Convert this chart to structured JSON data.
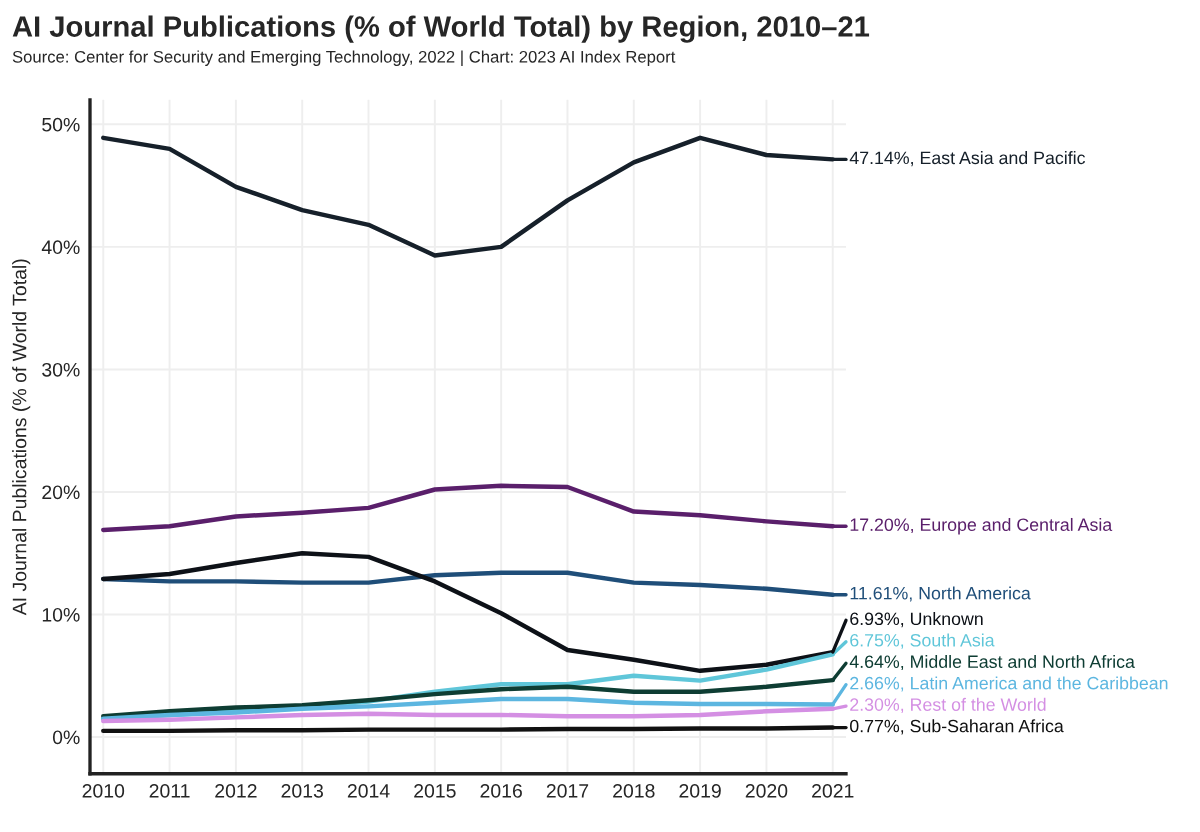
{
  "chart_data": {
    "type": "line",
    "title": "AI Journal Publications (% of World Total) by Region, 2010–21",
    "annotations": [
      "Source: Center for Security and Emerging Technology, 2022 | Chart: 2023 AI Index Report"
    ],
    "ylabel": "AI Journal Publications (% of World Total)",
    "categories": [
      "2010",
      "2011",
      "2012",
      "2013",
      "2014",
      "2015",
      "2016",
      "2017",
      "2018",
      "2019",
      "2020",
      "2021"
    ],
    "series": [
      {
        "name": "East Asia and Pacific",
        "color": "#16202a",
        "values": [
          48.9,
          48.0,
          44.9,
          43.0,
          41.8,
          39.3,
          40.0,
          43.8,
          46.9,
          48.9,
          47.5,
          47.14
        ],
        "value_labels": [
          null,
          null,
          null,
          null,
          null,
          null,
          null,
          null,
          null,
          null,
          null,
          "47.14%,"
        ]
      },
      {
        "name": "Europe and Central Asia",
        "color": "#5a1f6b",
        "values": [
          16.9,
          17.2,
          18.0,
          18.3,
          18.7,
          20.2,
          20.5,
          20.4,
          18.4,
          18.1,
          17.6,
          17.2
        ],
        "value_labels": [
          null,
          null,
          null,
          null,
          null,
          null,
          null,
          null,
          null,
          null,
          null,
          "17.20%,"
        ]
      },
      {
        "name": "North America",
        "color": "#1f4e79",
        "values": [
          12.9,
          12.7,
          12.7,
          12.6,
          12.6,
          13.2,
          13.4,
          13.4,
          12.6,
          12.4,
          12.1,
          11.61
        ],
        "value_labels": [
          null,
          null,
          null,
          null,
          null,
          null,
          null,
          null,
          null,
          null,
          null,
          "11.61%,"
        ]
      },
      {
        "name": "Unknown",
        "color": "#0d1117",
        "values": [
          12.9,
          13.3,
          14.2,
          15.0,
          14.7,
          12.7,
          10.1,
          7.1,
          6.3,
          5.4,
          5.9,
          6.93
        ],
        "value_labels": [
          null,
          null,
          null,
          null,
          null,
          null,
          null,
          null,
          null,
          null,
          null,
          "6.93%,"
        ]
      },
      {
        "name": "South Asia",
        "color": "#5fc6d9",
        "values": [
          1.5,
          1.8,
          2.1,
          2.4,
          2.9,
          3.7,
          4.3,
          4.3,
          5.0,
          4.6,
          5.5,
          6.75
        ],
        "value_labels": [
          null,
          null,
          null,
          null,
          null,
          null,
          null,
          null,
          null,
          null,
          null,
          "6.75%,"
        ]
      },
      {
        "name": "Middle East and North Africa",
        "color": "#0e3d33",
        "values": [
          1.7,
          2.1,
          2.4,
          2.6,
          3.0,
          3.5,
          3.9,
          4.1,
          3.7,
          3.7,
          4.1,
          4.64
        ],
        "value_labels": [
          null,
          null,
          null,
          null,
          null,
          null,
          null,
          null,
          null,
          null,
          null,
          "4.64%,"
        ]
      },
      {
        "name": "Latin America and the Caribbean",
        "color": "#5cb6e0",
        "values": [
          1.5,
          1.8,
          2.0,
          2.3,
          2.5,
          2.8,
          3.1,
          3.1,
          2.8,
          2.7,
          2.7,
          2.66
        ],
        "value_labels": [
          null,
          null,
          null,
          null,
          null,
          null,
          null,
          null,
          null,
          null,
          null,
          "2.66%,"
        ]
      },
      {
        "name": "Rest of the World",
        "color": "#d48fe3",
        "values": [
          1.3,
          1.4,
          1.6,
          1.8,
          1.9,
          1.8,
          1.8,
          1.7,
          1.7,
          1.8,
          2.1,
          2.3
        ],
        "value_labels": [
          null,
          null,
          null,
          null,
          null,
          null,
          null,
          null,
          null,
          null,
          null,
          "2.30%,"
        ]
      },
      {
        "name": "Sub-Saharan Africa",
        "color": "#111111",
        "values": [
          0.5,
          0.5,
          0.55,
          0.55,
          0.6,
          0.6,
          0.6,
          0.65,
          0.65,
          0.7,
          0.7,
          0.77
        ],
        "value_labels": [
          null,
          null,
          null,
          null,
          null,
          null,
          null,
          null,
          null,
          null,
          null,
          "0.77%,"
        ]
      }
    ],
    "ylim": [
      -3,
      52
    ],
    "yticks": [
      {
        "value": 0,
        "label": "0%"
      },
      {
        "value": 10,
        "label": "10%"
      },
      {
        "value": 20,
        "label": "20%"
      },
      {
        "value": 30,
        "label": "30%"
      },
      {
        "value": 40,
        "label": "40%"
      },
      {
        "value": 50,
        "label": "50%"
      }
    ],
    "grid": true,
    "legend": false,
    "marker": "none",
    "line_style": "solid"
  }
}
